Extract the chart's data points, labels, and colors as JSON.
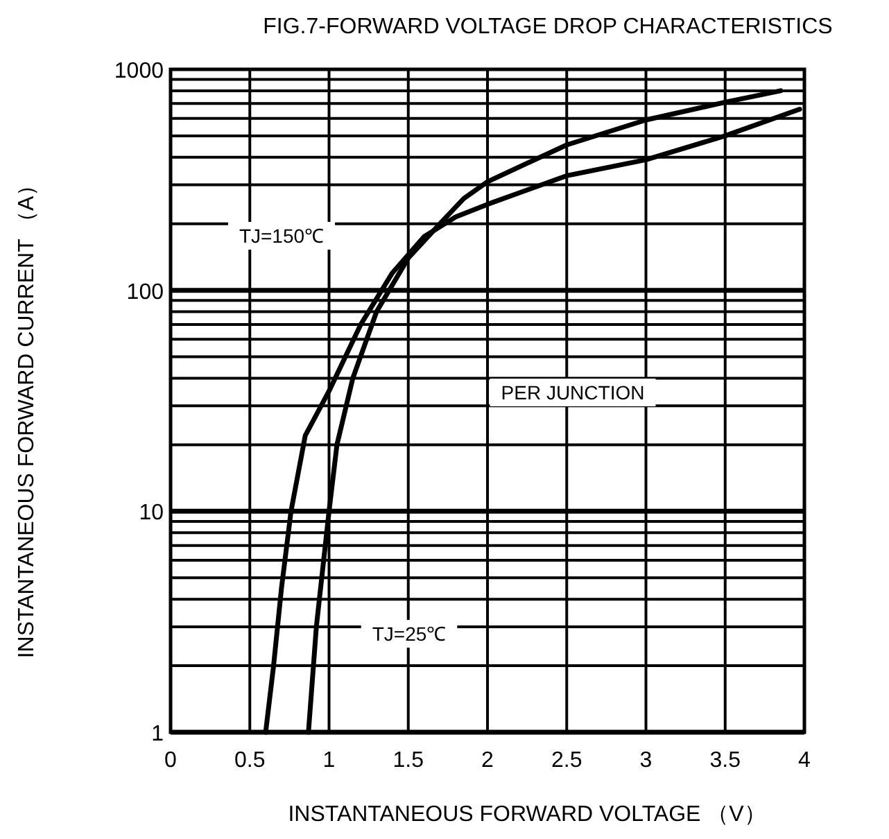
{
  "chart_data": {
    "type": "line",
    "title": "FIG.7-FORWARD VOLTAGE DROP CHARACTERISTICS",
    "xlabel": "INSTANTANEOUS FORWARD VOLTAGE （V）",
    "ylabel": "INSTANTANEOUS FORWARD CURRENT （A）",
    "series": [
      {
        "color": "#000000",
        "x": [
          0.6,
          0.65,
          0.7,
          0.76,
          0.85,
          1.0,
          1.2,
          1.4,
          1.6,
          1.8,
          2.0,
          2.5,
          3.0,
          3.5,
          3.97
        ],
        "values": [
          1,
          2,
          4.5,
          10,
          22,
          35,
          70,
          120,
          175,
          215,
          245,
          330,
          390,
          500,
          660
        ]
      },
      {
        "color": "#000000",
        "x": [
          0.87,
          0.92,
          1.0,
          1.05,
          1.15,
          1.3,
          1.5,
          1.7,
          1.85,
          2.0,
          2.5,
          3.0,
          3.5,
          3.85
        ],
        "values": [
          1,
          3,
          10,
          20,
          40,
          80,
          140,
          200,
          260,
          310,
          455,
          590,
          710,
          800
        ]
      }
    ],
    "xlim": [
      0,
      4
    ],
    "ylim": [
      1,
      1000
    ],
    "xticks": [
      0,
      0.5,
      1,
      1.5,
      2,
      2.5,
      3,
      3.5,
      4
    ],
    "yticks": [
      1,
      10,
      100,
      1000
    ],
    "log": "y",
    "grid": true,
    "line_style": "solid",
    "annotations": [
      "TJ=150℃",
      "PER JUNCTION",
      "TJ=25℃"
    ]
  }
}
